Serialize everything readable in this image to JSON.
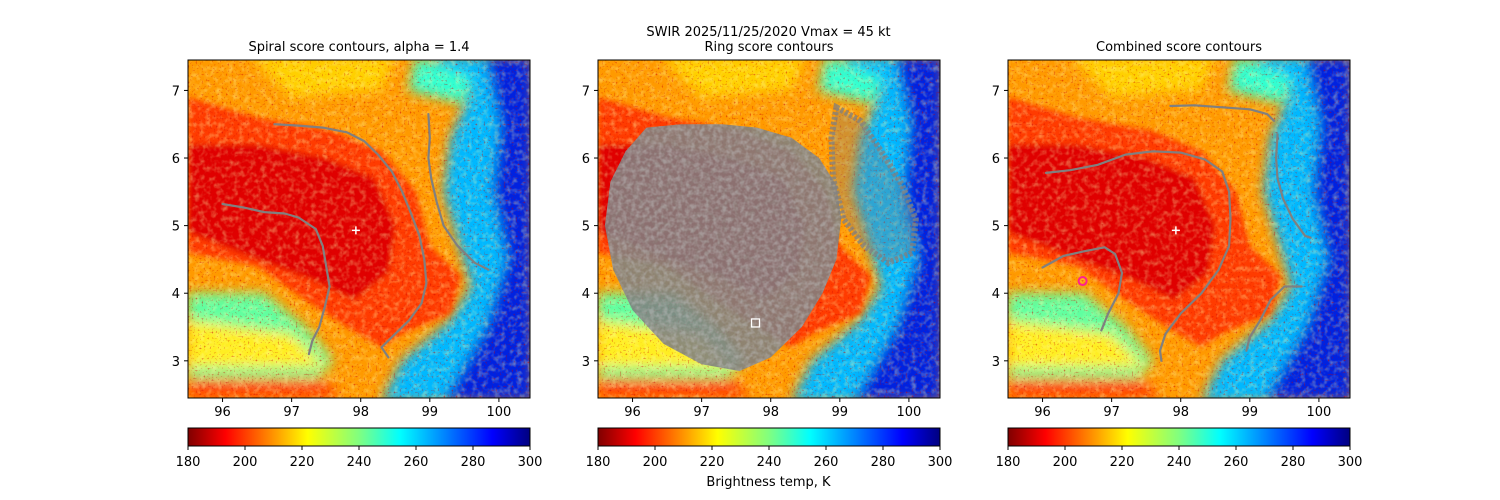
{
  "suptitle": "SWIR  2025/11/25/2020    Vmax = 45 kt",
  "colorbar_label": "Brightness temp, K",
  "chart_data": [
    {
      "type": "heatmap",
      "title": "Spiral score contours, alpha =  1.4",
      "xlim": [
        95.5,
        100.45
      ],
      "ylim": [
        2.45,
        7.45
      ],
      "xticks": [
        "96",
        "97",
        "98",
        "99",
        "100"
      ],
      "yticks": [
        "3",
        "4",
        "5",
        "6",
        "7"
      ],
      "colorbar": {
        "range": [
          180,
          300
        ],
        "ticks": [
          "180",
          "200",
          "220",
          "240",
          "260",
          "280",
          "300"
        ]
      },
      "markers": [
        {
          "label": "center",
          "shape": "plus",
          "x": 97.93,
          "y": 4.93,
          "color": "#ffffff"
        }
      ],
      "contours": [
        {
          "color": "#808080",
          "points": [
            [
              96.0,
              5.32
            ],
            [
              96.3,
              5.27
            ],
            [
              96.6,
              5.2
            ],
            [
              96.9,
              5.18
            ],
            [
              97.1,
              5.12
            ],
            [
              97.35,
              4.95
            ],
            [
              97.45,
              4.7
            ],
            [
              97.5,
              4.4
            ],
            [
              97.55,
              4.1
            ],
            [
              97.48,
              3.8
            ],
            [
              97.4,
              3.5
            ],
            [
              97.3,
              3.3
            ],
            [
              97.25,
              3.1
            ]
          ]
        },
        {
          "color": "#808080",
          "points": [
            [
              96.75,
              6.5
            ],
            [
              97.1,
              6.48
            ],
            [
              97.45,
              6.45
            ],
            [
              97.8,
              6.38
            ],
            [
              98.05,
              6.25
            ],
            [
              98.25,
              6.05
            ],
            [
              98.45,
              5.8
            ],
            [
              98.6,
              5.5
            ],
            [
              98.72,
              5.2
            ],
            [
              98.85,
              4.85
            ],
            [
              98.92,
              4.5
            ],
            [
              98.95,
              4.15
            ],
            [
              98.88,
              3.85
            ],
            [
              98.7,
              3.6
            ],
            [
              98.45,
              3.35
            ],
            [
              98.3,
              3.2
            ],
            [
              98.4,
              3.05
            ]
          ]
        },
        {
          "color": "#808080",
          "points": [
            [
              98.98,
              6.65
            ],
            [
              99.0,
              6.3
            ],
            [
              98.98,
              6.0
            ],
            [
              99.02,
              5.7
            ],
            [
              99.1,
              5.35
            ],
            [
              99.2,
              5.0
            ],
            [
              99.4,
              4.7
            ],
            [
              99.65,
              4.45
            ],
            [
              99.85,
              4.35
            ]
          ]
        }
      ]
    },
    {
      "type": "heatmap",
      "title": "Ring score contours",
      "xlim": [
        95.5,
        100.45
      ],
      "ylim": [
        2.45,
        7.45
      ],
      "xticks": [
        "96",
        "97",
        "98",
        "99",
        "100"
      ],
      "yticks": [
        "3",
        "4",
        "5",
        "6",
        "7"
      ],
      "colorbar": {
        "range": [
          180,
          300
        ],
        "ticks": [
          "180",
          "200",
          "220",
          "240",
          "260",
          "280",
          "300"
        ]
      },
      "markers": [
        {
          "label": "ring-center",
          "shape": "square",
          "x": 97.78,
          "y": 3.56,
          "color": "#ffffff"
        }
      ],
      "ring_region": [
        [
          96.2,
          6.45
        ],
        [
          96.7,
          6.5
        ],
        [
          97.3,
          6.5
        ],
        [
          97.8,
          6.45
        ],
        [
          98.3,
          6.3
        ],
        [
          98.7,
          6.0
        ],
        [
          98.95,
          5.6
        ],
        [
          99.02,
          5.1
        ],
        [
          98.95,
          4.5
        ],
        [
          98.75,
          4.0
        ],
        [
          98.45,
          3.5
        ],
        [
          98.0,
          3.05
        ],
        [
          97.55,
          2.85
        ],
        [
          97.0,
          2.95
        ],
        [
          96.45,
          3.25
        ],
        [
          96.0,
          3.75
        ],
        [
          95.72,
          4.35
        ],
        [
          95.6,
          5.0
        ],
        [
          95.68,
          5.65
        ],
        [
          95.9,
          6.1
        ]
      ],
      "ring_region_east": [
        [
          98.95,
          6.75
        ],
        [
          99.3,
          6.55
        ],
        [
          99.6,
          6.1
        ],
        [
          99.9,
          5.6
        ],
        [
          100.1,
          5.1
        ],
        [
          100.05,
          4.6
        ],
        [
          99.7,
          4.45
        ],
        [
          99.35,
          4.7
        ],
        [
          99.05,
          5.1
        ],
        [
          98.9,
          5.7
        ],
        [
          98.88,
          6.3
        ]
      ]
    },
    {
      "type": "heatmap",
      "title": "Combined score contours",
      "xlim": [
        95.5,
        100.45
      ],
      "ylim": [
        2.45,
        7.45
      ],
      "xticks": [
        "96",
        "97",
        "98",
        "99",
        "100"
      ],
      "yticks": [
        "3",
        "4",
        "5",
        "6",
        "7"
      ],
      "colorbar": {
        "range": [
          180,
          300
        ],
        "ticks": [
          "180",
          "200",
          "220",
          "240",
          "260",
          "280",
          "300"
        ]
      },
      "markers": [
        {
          "label": "center",
          "shape": "plus",
          "x": 97.93,
          "y": 4.93,
          "color": "#ffffff"
        },
        {
          "label": "combined-center",
          "shape": "circle",
          "x": 96.58,
          "y": 4.18,
          "color": "#ff2090"
        }
      ],
      "contours": [
        {
          "color": "#808080",
          "points": [
            [
              97.85,
              6.77
            ],
            [
              98.2,
              6.78
            ],
            [
              98.6,
              6.75
            ],
            [
              99.0,
              6.72
            ],
            [
              99.25,
              6.65
            ],
            [
              99.35,
              6.55
            ]
          ]
        },
        {
          "color": "#808080",
          "points": [
            [
              96.05,
              5.78
            ],
            [
              96.4,
              5.82
            ],
            [
              96.8,
              5.9
            ],
            [
              97.2,
              6.05
            ],
            [
              97.6,
              6.1
            ],
            [
              98.0,
              6.08
            ],
            [
              98.35,
              5.98
            ],
            [
              98.6,
              5.8
            ],
            [
              98.7,
              5.5
            ],
            [
              98.72,
              5.1
            ],
            [
              98.7,
              4.7
            ],
            [
              98.55,
              4.35
            ],
            [
              98.3,
              4.0
            ],
            [
              98.0,
              3.7
            ],
            [
              97.78,
              3.4
            ],
            [
              97.7,
              3.15
            ],
            [
              97.72,
              3.0
            ]
          ]
        },
        {
          "color": "#808080",
          "points": [
            [
              96.0,
              4.38
            ],
            [
              96.3,
              4.55
            ],
            [
              96.6,
              4.62
            ],
            [
              96.9,
              4.68
            ],
            [
              97.05,
              4.58
            ],
            [
              97.15,
              4.3
            ],
            [
              97.1,
              4.0
            ],
            [
              96.95,
              3.7
            ],
            [
              96.85,
              3.45
            ]
          ]
        },
        {
          "color": "#808080",
          "points": [
            [
              99.4,
              6.35
            ],
            [
              99.38,
              6.0
            ],
            [
              99.4,
              5.7
            ],
            [
              99.48,
              5.4
            ],
            [
              99.62,
              5.1
            ],
            [
              99.8,
              4.85
            ],
            [
              99.88,
              4.82
            ]
          ]
        },
        {
          "color": "#808080",
          "points": [
            [
              99.75,
              4.1
            ],
            [
              99.5,
              4.1
            ],
            [
              99.3,
              3.9
            ],
            [
              99.15,
              3.6
            ],
            [
              99.0,
              3.35
            ],
            [
              98.95,
              3.15
            ]
          ]
        }
      ]
    }
  ]
}
